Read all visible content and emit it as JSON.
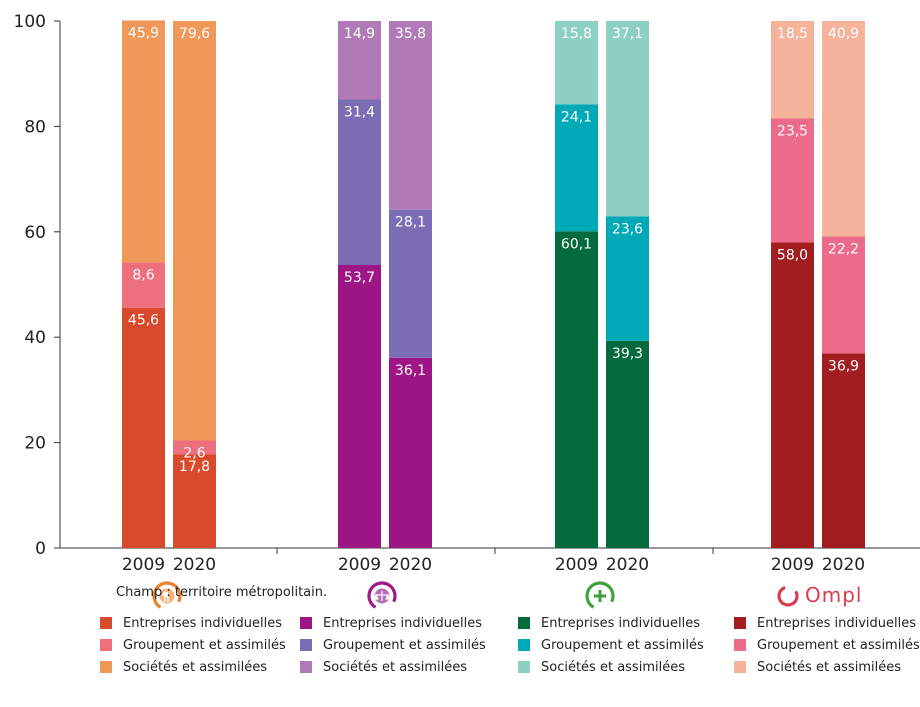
{
  "chart_data": {
    "type": "stacked-bar",
    "ylim": [
      0,
      100
    ],
    "yticks": [
      0,
      20,
      40,
      60,
      80,
      100
    ],
    "groups": [
      {
        "icon": "ecology-icon",
        "color_icon": "#e8832e",
        "bars": [
          {
            "year": "2009",
            "values": [
              45.6,
              8.6,
              45.9
            ],
            "labels": [
              "45,6",
              "8,6",
              "45,9"
            ]
          },
          {
            "year": "2020",
            "values": [
              17.8,
              2.6,
              79.6
            ],
            "labels": [
              "17,8",
              "2,6",
              "79,6"
            ]
          }
        ],
        "colors": [
          "#d94a2c",
          "#ee6f7d",
          "#f0975a"
        ]
      },
      {
        "icon": "justice-scale-icon",
        "color_icon": "#9c1a84",
        "bars": [
          {
            "year": "2009",
            "values": [
              53.7,
              31.4,
              14.9
            ],
            "labels": [
              "53,7",
              "31,4",
              "14,9"
            ]
          },
          {
            "year": "2020",
            "values": [
              36.1,
              28.1,
              35.8
            ],
            "labels": [
              "36,1",
              "28,1",
              "35,8"
            ]
          }
        ],
        "colors": [
          "#9e1585",
          "#7b6db4",
          "#b07ab7"
        ]
      },
      {
        "icon": "health-cross-icon",
        "color_icon": "#3ea23e",
        "bars": [
          {
            "year": "2009",
            "values": [
              60.1,
              24.1,
              15.8
            ],
            "labels": [
              "60,1",
              "24,1",
              "15,8"
            ]
          },
          {
            "year": "2020",
            "values": [
              39.3,
              23.6,
              37.1
            ],
            "labels": [
              "39,3",
              "23,6",
              "37,1"
            ]
          }
        ],
        "colors": [
          "#056b3c",
          "#00a9b8",
          "#8ecfc3"
        ]
      },
      {
        "icon": "ompl-logo-icon",
        "color_icon": "#d93c4c",
        "bars": [
          {
            "year": "2009",
            "values": [
              58.0,
              23.5,
              18.5
            ],
            "labels": [
              "58,0",
              "23,5",
              "18,5"
            ]
          },
          {
            "year": "2020",
            "values": [
              36.9,
              22.2,
              40.9
            ],
            "labels": [
              "36,9",
              "22,2",
              "40,9"
            ]
          }
        ],
        "colors": [
          "#a11d20",
          "#ec6a8a",
          "#f6b39c"
        ]
      }
    ],
    "series_names": [
      "Entreprises individuelles",
      "Groupement et assimilés",
      "Sociétés et assimilées"
    ]
  },
  "note": "Champ : territoire métropolitain.",
  "logo_text": "Ompl",
  "legends": [
    {
      "items": [
        {
          "label": "Entreprises individuelles",
          "color": "#d94a2c"
        },
        {
          "label": "Groupement et assimilés",
          "color": "#ee6f7d"
        },
        {
          "label": "Sociétés et assimilées",
          "color": "#f0975a"
        }
      ]
    },
    {
      "items": [
        {
          "label": "Entreprises individuelles",
          "color": "#9e1585"
        },
        {
          "label": "Groupement et assimilés",
          "color": "#7b6db4"
        },
        {
          "label": "Sociétés et assimilées",
          "color": "#b07ab7"
        }
      ]
    },
    {
      "items": [
        {
          "label": "Entreprises individuelles",
          "color": "#056b3c"
        },
        {
          "label": "Groupement et assimilés",
          "color": "#00a9b8"
        },
        {
          "label": "Sociétés et assimilées",
          "color": "#8ecfc3"
        }
      ]
    },
    {
      "items": [
        {
          "label": "Entreprises individuelles",
          "color": "#a11d20"
        },
        {
          "label": "Groupement et assimilés",
          "color": "#ec6a8a"
        },
        {
          "label": "Sociétés et assimilées",
          "color": "#f6b39c"
        }
      ]
    }
  ]
}
